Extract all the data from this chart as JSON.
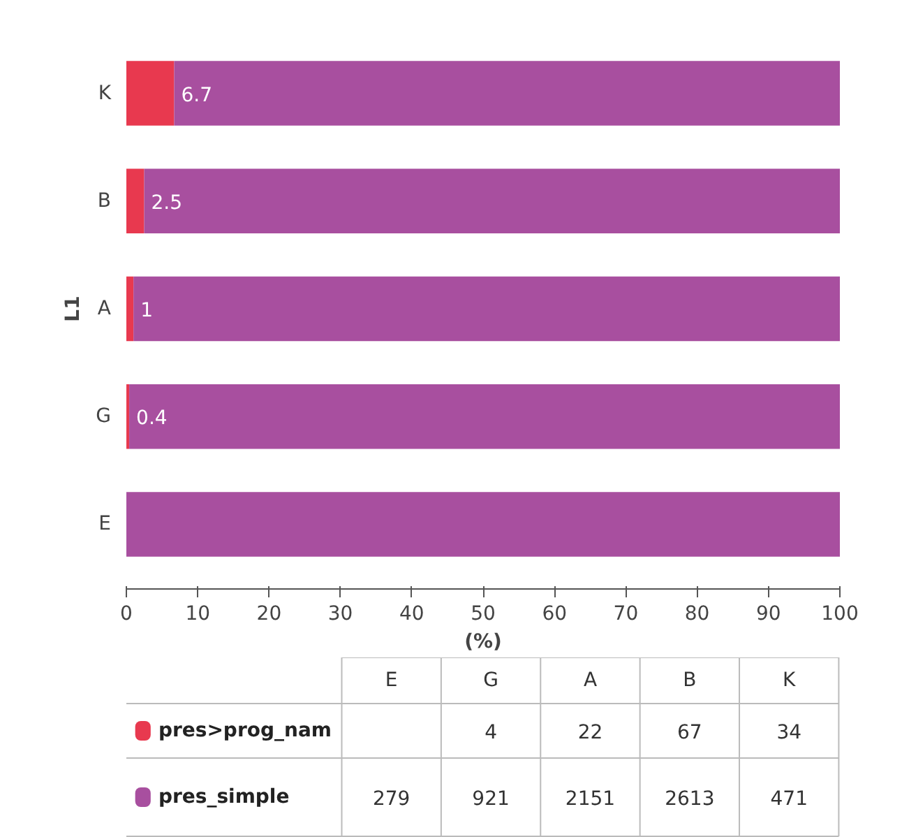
{
  "chart_data": [
    {
      "type": "bar",
      "orientation": "horizontal",
      "stacked": true,
      "xlabel": "(%)",
      "ylabel": "L1",
      "categories": [
        "K",
        "B",
        "A",
        "G",
        "E"
      ],
      "series": [
        {
          "color": "#e8394f",
          "values": [
            6.7,
            2.5,
            1.0,
            0.4,
            0
          ],
          "value_labels": [
            "6.7",
            "2.5",
            "1",
            "0.4",
            null
          ]
        },
        {
          "color": "#a84f9f",
          "values": [
            93.3,
            97.5,
            99.0,
            99.6,
            100
          ]
        }
      ],
      "xlim": [
        0,
        100
      ],
      "xticks": [
        0,
        10,
        20,
        30,
        40,
        50,
        60,
        70,
        80,
        90,
        100
      ],
      "grid": false
    },
    {
      "type": "other",
      "legend": "left",
      "data_labels": true,
      "categories": [
        "E",
        "G",
        "A",
        "B",
        "K"
      ],
      "series": [
        {
          "name": "pres>prog_nam",
          "color": "#e8394f",
          "values": [
            null,
            4,
            22,
            67,
            34
          ]
        },
        {
          "name": "pres_simple",
          "color": "#a84f9f",
          "values": [
            279,
            921,
            2151,
            2613,
            471
          ]
        }
      ]
    }
  ]
}
